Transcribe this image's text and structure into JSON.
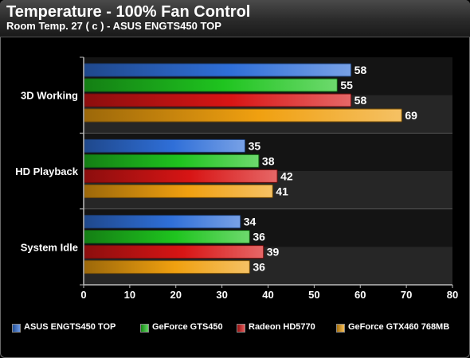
{
  "header": {
    "title": "Temperature - 100% Fan Control",
    "subtitle": "Room Temp. 27 ( c ) - ASUS ENGTS450 TOP"
  },
  "chart_data": {
    "type": "bar",
    "orientation": "horizontal",
    "title": "Temperature - 100% Fan Control",
    "subtitle": "Room Temp. 27 ( c ) - ASUS ENGTS450 TOP",
    "categories": [
      "3D Working",
      "HD Playback",
      "System Idle"
    ],
    "series": [
      {
        "name": "ASUS ENGTS450 TOP",
        "color": "#2f6fd8",
        "values": [
          58,
          35,
          34
        ]
      },
      {
        "name": "GeForce GTS450",
        "color": "#1fc41f",
        "values": [
          55,
          38,
          36
        ]
      },
      {
        "name": "Radeon HD5770",
        "color": "#d81515",
        "values": [
          58,
          42,
          39
        ]
      },
      {
        "name": "GeForce GTX460 768MB",
        "color": "#f0a010",
        "values": [
          69,
          41,
          36
        ]
      }
    ],
    "xlim": [
      0,
      80
    ],
    "xticks": [
      0,
      10,
      20,
      30,
      40,
      50,
      60,
      70,
      80
    ],
    "grid": false,
    "legend_position": "bottom",
    "data_labels": true
  }
}
